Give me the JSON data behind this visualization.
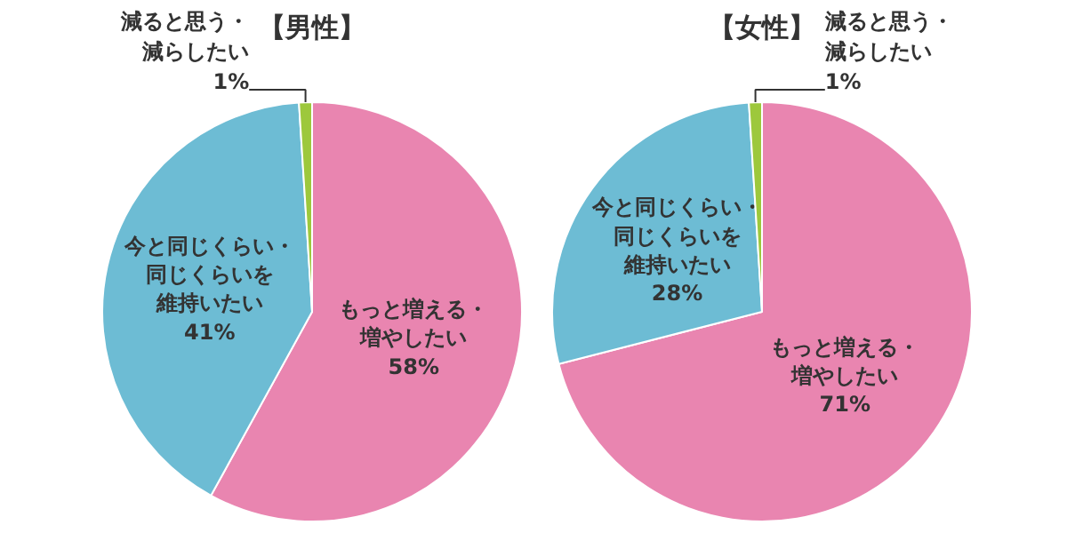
{
  "chart_data": [
    {
      "type": "pie",
      "title": "【男性】",
      "categories": [
        "もっと増える・増やしたい",
        "今と同じくらい・同じくらいを維持いたい",
        "減ると思う・減らしたい"
      ],
      "values": [
        58,
        41,
        1
      ],
      "value_labels": [
        "58%",
        "41%",
        "1%"
      ],
      "colors": [
        "#e985b0",
        "#6dbcd4",
        "#9dc83c"
      ]
    },
    {
      "type": "pie",
      "title": "【女性】",
      "categories": [
        "もっと増える・増やしたい",
        "今と同じくらい・同じくらいを維持いたい",
        "減ると思う・減らしたい"
      ],
      "values": [
        71,
        28,
        1
      ],
      "value_labels": [
        "71%",
        "28%",
        "1%"
      ],
      "colors": [
        "#e985b0",
        "#6dbcd4",
        "#9dc83c"
      ]
    }
  ]
}
